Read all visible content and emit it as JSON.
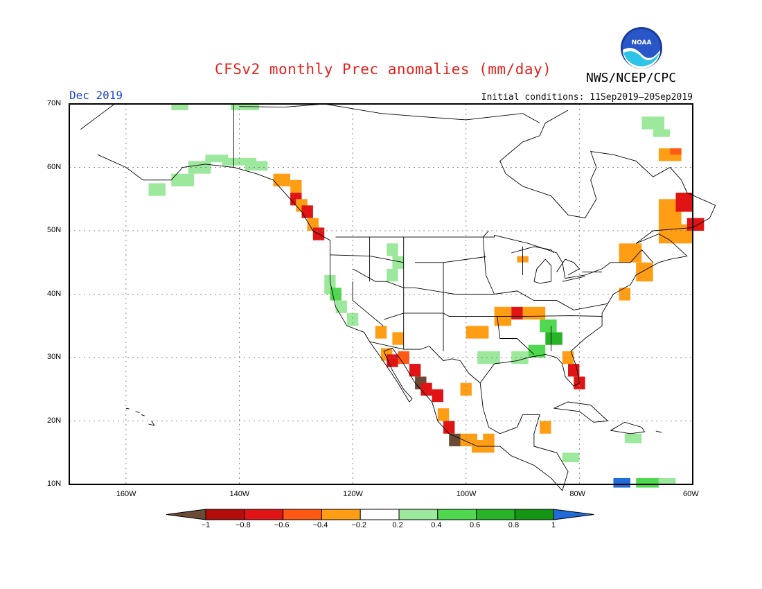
{
  "title": "CFSv2 monthly Prec anomalies (mm/day)",
  "agency": "NWS/NCEP/CPC",
  "logo_text": "NOAA",
  "target_month": "Dec 2019",
  "initial_conditions": "Initial conditions: 11Sep2019–20Sep2019",
  "map": {
    "lat_labels": [
      "70N",
      "60N",
      "50N",
      "40N",
      "30N",
      "20N",
      "10N"
    ],
    "lon_labels": [
      "160W",
      "140W",
      "120W",
      "100W",
      "80W",
      "60W"
    ],
    "lat_range": [
      10,
      70
    ],
    "lon_range": [
      -170,
      -60
    ],
    "grid": "dotted"
  },
  "colorbar": {
    "labels": [
      "−1",
      "−0.8",
      "−0.6",
      "−0.4",
      "−0.2",
      "0.2",
      "0.4",
      "0.6",
      "0.8",
      "1"
    ],
    "colors": [
      "#6b4a36",
      "#b50c0c",
      "#e01414",
      "#ff5a14",
      "#ff9e14",
      "#ffffff",
      "#9ce89c",
      "#50d850",
      "#28b428",
      "#149614",
      "#1f6cd8"
    ]
  },
  "anomaly_colors": {
    "brown": "#6b4a36",
    "darkred": "#b50c0c",
    "red": "#e01414",
    "redorange": "#ff5a14",
    "orange": "#ff9e14",
    "lightgreen": "#9ce89c",
    "green": "#50d850",
    "midgreen": "#28b428",
    "darkgreen": "#149614",
    "blue": "#1f6cd8"
  }
}
